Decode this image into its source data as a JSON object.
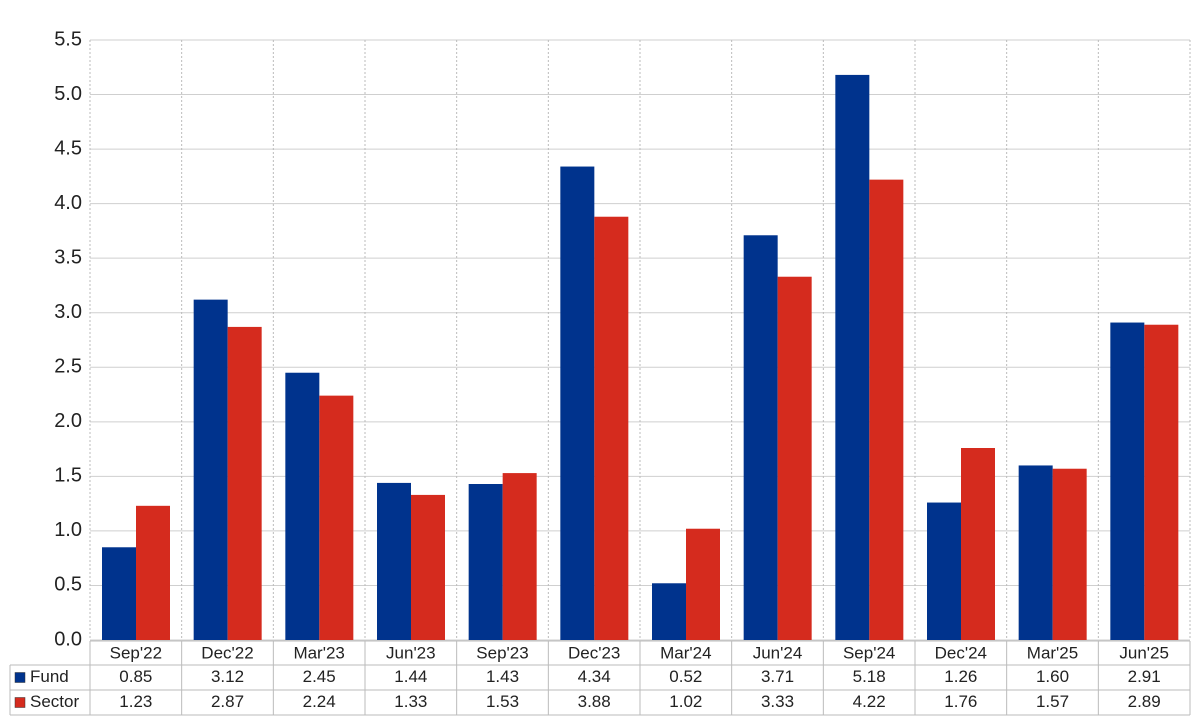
{
  "chart_data": {
    "type": "bar",
    "categories": [
      "Sep'22",
      "Dec'22",
      "Mar'23",
      "Jun'23",
      "Sep'23",
      "Dec'23",
      "Mar'24",
      "Jun'24",
      "Sep'24",
      "Dec'24",
      "Mar'25",
      "Jun'25"
    ],
    "series": [
      {
        "name": "Fund",
        "color": "#00338d",
        "values": [
          0.85,
          3.12,
          2.45,
          1.44,
          1.43,
          4.34,
          0.52,
          3.71,
          5.18,
          1.26,
          1.6,
          2.91
        ],
        "value_labels": [
          "0.85",
          "3.12",
          "2.45",
          "1.44",
          "1.43",
          "4.34",
          "0.52",
          "3.71",
          "5.18",
          "1.26",
          "1.60",
          "2.91"
        ]
      },
      {
        "name": "Sector",
        "color": "#d52b1e",
        "values": [
          1.23,
          2.87,
          2.24,
          1.33,
          1.53,
          3.88,
          1.02,
          3.33,
          4.22,
          1.76,
          1.57,
          2.89
        ]
      }
    ],
    "ylim": [
      0,
      5.5
    ],
    "yticks": [
      {
        "value": 0,
        "label": "0.0"
      },
      0.5,
      {
        "value": 1,
        "label": "1.0"
      },
      1.5,
      {
        "value": 2,
        "label": "2.0"
      },
      2.5,
      {
        "value": 3,
        "label": "3.0"
      },
      3.5,
      {
        "value": 4,
        "label": "4.0"
      },
      4.5,
      {
        "value": 5,
        "label": "5.0"
      },
      5.5
    ],
    "grid": true
  }
}
